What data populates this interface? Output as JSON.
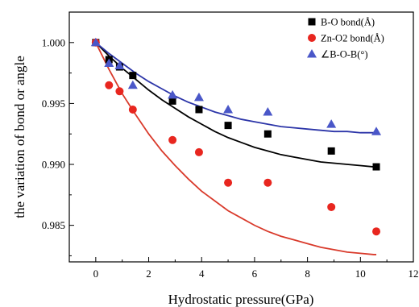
{
  "chart_data": {
    "type": "scatter",
    "xlabel": "Hydrostatic pressure(GPa)",
    "ylabel": "the variation of bond or angle",
    "xlim": [
      -1,
      12
    ],
    "ylim": [
      0.982,
      1.0025
    ],
    "x_ticks": [
      "0",
      "2",
      "4",
      "6",
      "8",
      "10",
      "12"
    ],
    "y_ticks": [
      "0.985",
      "0.990",
      "0.995",
      "1.000"
    ],
    "x_tick_values": [
      0,
      2,
      4,
      6,
      8,
      10,
      12
    ],
    "y_tick_values": [
      0.985,
      0.99,
      0.995,
      1.0
    ],
    "grid": false,
    "legend_position": "top-right",
    "series": [
      {
        "name": "B-O bond(Å)",
        "marker": "square",
        "color": "#000000",
        "fit_color": "#000000",
        "x": [
          0.0,
          0.5,
          0.9,
          1.4,
          2.9,
          3.9,
          5.0,
          6.5,
          8.9,
          10.6
        ],
        "y": [
          1.0,
          0.9986,
          0.998,
          0.9973,
          0.9952,
          0.9945,
          0.9932,
          0.9925,
          0.9911,
          0.9898
        ],
        "fit_x": [
          0,
          0.5,
          1,
          1.5,
          2,
          2.5,
          3,
          3.5,
          4,
          4.5,
          5,
          5.5,
          6,
          6.5,
          7,
          7.5,
          8,
          8.5,
          9,
          9.5,
          10,
          10.5,
          10.6
        ],
        "fit_y": [
          1.0,
          0.9989,
          0.9979,
          0.997,
          0.9961,
          0.9953,
          0.9946,
          0.9939,
          0.9933,
          0.9927,
          0.9922,
          0.9918,
          0.9914,
          0.9911,
          0.9908,
          0.9906,
          0.9904,
          0.9902,
          0.9901,
          0.99,
          0.9899,
          0.9898,
          0.9898
        ]
      },
      {
        "name": "Zn-O2 bond(Å)",
        "marker": "circle",
        "color": "#e8261f",
        "fit_color": "#d93a2b",
        "x": [
          0.0,
          0.5,
          0.9,
          1.4,
          2.9,
          3.9,
          5.0,
          6.5,
          8.9,
          10.6
        ],
        "y": [
          1.0,
          0.9965,
          0.996,
          0.9945,
          0.992,
          0.991,
          0.9885,
          0.9885,
          0.9865,
          0.9845
        ],
        "fit_x": [
          0,
          0.5,
          1,
          1.5,
          2,
          2.5,
          3,
          3.5,
          4,
          4.5,
          5,
          5.5,
          6,
          6.5,
          7,
          7.5,
          8,
          8.5,
          9,
          9.5,
          10,
          10.5,
          10.6
        ],
        "fit_y": [
          1.0,
          0.9978,
          0.9958,
          0.9941,
          0.9925,
          0.9911,
          0.9899,
          0.9888,
          0.9878,
          0.987,
          0.9862,
          0.9856,
          0.985,
          0.9845,
          0.9841,
          0.9838,
          0.9835,
          0.9832,
          0.983,
          0.9828,
          0.9827,
          0.9826,
          0.9826
        ]
      },
      {
        "name": "∠B-O-B(°)",
        "marker": "triangle",
        "color": "#4a57c8",
        "fit_color": "#2c35a8",
        "x": [
          0.0,
          0.5,
          0.9,
          1.4,
          2.9,
          3.9,
          5.0,
          6.5,
          8.9,
          10.6
        ],
        "y": [
          1.0,
          0.9983,
          0.9981,
          0.9965,
          0.9957,
          0.9955,
          0.9945,
          0.9943,
          0.9933,
          0.9927
        ],
        "fit_x": [
          0,
          0.5,
          1,
          1.5,
          2,
          2.5,
          3,
          3.5,
          4,
          4.5,
          5,
          5.5,
          6,
          6.5,
          7,
          7.5,
          8,
          8.5,
          9,
          9.5,
          10,
          10.5,
          10.6
        ],
        "fit_y": [
          1.0,
          0.9991,
          0.9983,
          0.9975,
          0.9968,
          0.9962,
          0.9956,
          0.9951,
          0.9947,
          0.9943,
          0.994,
          0.9937,
          0.9935,
          0.9933,
          0.9931,
          0.993,
          0.9929,
          0.9928,
          0.9927,
          0.9927,
          0.9926,
          0.9926,
          0.9926
        ]
      }
    ]
  }
}
